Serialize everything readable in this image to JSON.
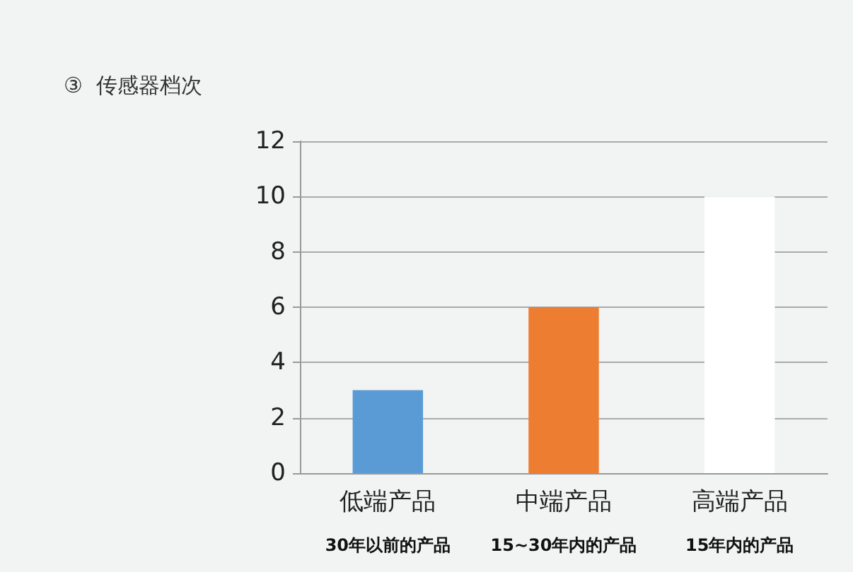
{
  "chart_data": {
    "type": "bar",
    "title": "③  传感器档次",
    "categories": [
      "低端产品",
      "中端产品",
      "高端产品"
    ],
    "values": [
      3,
      6,
      10
    ],
    "colors": [
      "#5b9bd5",
      "#ed7d31",
      "#ffffff"
    ],
    "ylim": [
      0,
      12
    ],
    "yticks": [
      0,
      2,
      4,
      6,
      8,
      10,
      12
    ],
    "grid": "y",
    "annotations": [
      "30年以前的产品",
      "15~30年内的产品",
      "15年内的产品"
    ]
  }
}
